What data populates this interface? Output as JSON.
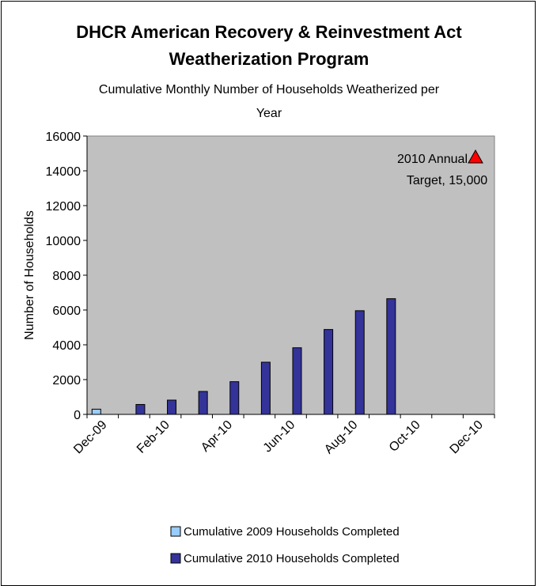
{
  "chart_data": {
    "type": "bar",
    "title_line1": "DHCR American Recovery & Reinvestment Act",
    "title_line2": "Weatherization Program",
    "subtitle_line1": "Cumulative Monthly Number of Households Weatherized per",
    "subtitle_line2": "Year",
    "ylabel": "Number of Households",
    "xlabel": "",
    "ylim": [
      0,
      16000
    ],
    "y_ticks": [
      0,
      2000,
      4000,
      6000,
      8000,
      10000,
      12000,
      14000,
      16000
    ],
    "categories": [
      "Dec-09",
      "Jan-10",
      "Feb-10",
      "Mar-10",
      "Apr-10",
      "May-10",
      "Jun-10",
      "Jul-10",
      "Aug-10",
      "Sep-10",
      "Oct-10",
      "Nov-10",
      "Dec-10"
    ],
    "x_tick_labels": [
      "Dec-09",
      "Feb-10",
      "Apr-10",
      "Jun-10",
      "Aug-10",
      "Oct-10",
      "Dec-10"
    ],
    "series": [
      {
        "name": "Cumulative 2009 Households Completed",
        "color": "#99ccff",
        "values": [
          300,
          null,
          null,
          null,
          null,
          null,
          null,
          null,
          null,
          null,
          null,
          null,
          null
        ]
      },
      {
        "name": "Cumulative 2010 Households Completed",
        "color": "#333399",
        "values": [
          null,
          570,
          820,
          1320,
          1880,
          3000,
          3830,
          4880,
          5960,
          6650,
          null,
          null,
          null
        ]
      }
    ],
    "target": {
      "label_line1": "2010 Annual",
      "label_line2": "Target, 15,000",
      "value": 15000,
      "marker_color": "#ff0000"
    },
    "plot_background": "#c0c0c0",
    "grid": false,
    "legend_position": "bottom"
  }
}
